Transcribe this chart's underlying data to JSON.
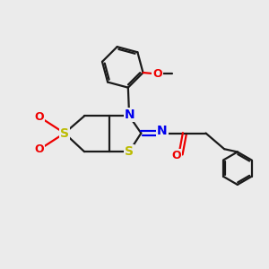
{
  "bg_color": "#ebebeb",
  "bond_color": "#1a1a1a",
  "N_color": "#0000ee",
  "S_color": "#bbbb00",
  "O_color": "#ee0000",
  "C_color": "#1a1a1a",
  "line_width": 1.6,
  "dpi": 100,
  "fig_size": [
    3.0,
    3.0
  ],
  "xlim": [
    0,
    10
  ],
  "ylim": [
    0,
    10
  ]
}
